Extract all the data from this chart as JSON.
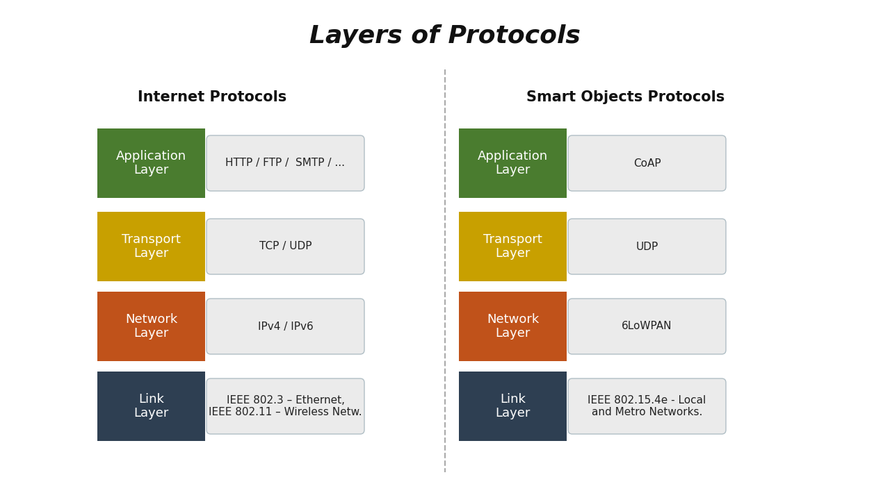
{
  "title": "Layers of Protocols",
  "title_fontsize": 26,
  "title_style": "italic",
  "title_weight": "bold",
  "background_color": "#ffffff",
  "left_header": "Internet Protocols",
  "right_header": "Smart Objects Protocols",
  "header_fontsize": 15,
  "header_weight": "bold",
  "layers": [
    {
      "name": "Application\nLayer",
      "color": "#4a7c2f",
      "left_protocol": "HTTP / FTP /  SMTP / ...",
      "right_protocol": "CoAP"
    },
    {
      "name": "Transport\nLayer",
      "color": "#c8a000",
      "left_protocol": "TCP / UDP",
      "right_protocol": "UDP"
    },
    {
      "name": "Network\nLayer",
      "color": "#c0521a",
      "left_protocol": "IPv4 / IPv6",
      "right_protocol": "6LoWPAN"
    },
    {
      "name": "Link\nLayer",
      "color": "#2e3f52",
      "left_protocol": "IEEE 802.3 – Ethernet,\nIEEE 802.11 – Wireless Netw.",
      "right_protocol": "IEEE 802.15.4e - Local\nand Metro Networks."
    }
  ],
  "text_color_light": "#ffffff",
  "text_color_dark": "#222222",
  "protocol_bg": "#ebebeb",
  "protocol_border": "#b0bec5",
  "layer_name_fontsize": 13,
  "protocol_fontsize": 11
}
